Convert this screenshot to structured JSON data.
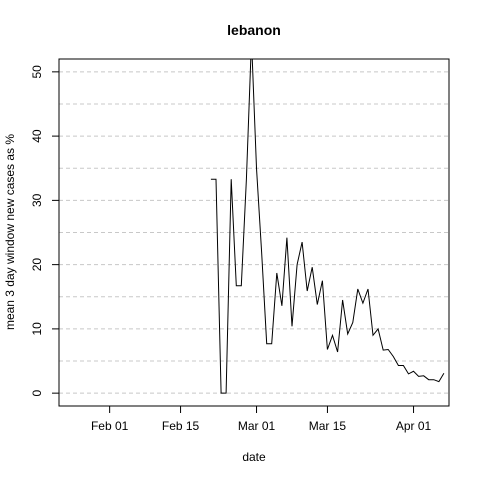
{
  "chart_data": {
    "type": "line",
    "title": "lebanon",
    "xlabel": "date",
    "ylabel": "mean  3  day window new cases as %",
    "x_date_range": [
      "2020-01-22",
      "2020-04-08"
    ],
    "ylim": [
      -2,
      52
    ],
    "x_ticks": [
      {
        "date": "2020-02-01",
        "label": "Feb 01"
      },
      {
        "date": "2020-02-15",
        "label": "Feb 15"
      },
      {
        "date": "2020-03-01",
        "label": "Mar 01"
      },
      {
        "date": "2020-03-15",
        "label": "Mar 15"
      },
      {
        "date": "2020-04-01",
        "label": "Apr 01"
      }
    ],
    "y_ticks": [
      0,
      10,
      20,
      30,
      40,
      50
    ],
    "grid": "horizontal dashed",
    "series": [
      {
        "color": "#000000",
        "x": [
          "2020-02-21",
          "2020-02-22",
          "2020-02-23",
          "2020-02-24",
          "2020-02-25",
          "2020-02-26",
          "2020-02-27",
          "2020-02-28",
          "2020-02-29",
          "2020-03-01",
          "2020-03-02",
          "2020-03-03",
          "2020-03-04",
          "2020-03-05",
          "2020-03-06",
          "2020-03-07",
          "2020-03-08",
          "2020-03-09",
          "2020-03-10",
          "2020-03-11",
          "2020-03-12",
          "2020-03-13",
          "2020-03-14",
          "2020-03-15",
          "2020-03-16",
          "2020-03-17",
          "2020-03-18",
          "2020-03-19",
          "2020-03-20",
          "2020-03-21",
          "2020-03-22",
          "2020-03-23",
          "2020-03-24",
          "2020-03-25",
          "2020-03-26",
          "2020-03-27",
          "2020-03-28",
          "2020-03-29",
          "2020-03-30",
          "2020-03-31",
          "2020-04-01",
          "2020-04-02",
          "2020-04-03",
          "2020-04-04",
          "2020-04-05",
          "2020-04-06",
          "2020-04-07"
        ],
        "y": [
          33.3,
          33.3,
          0,
          0,
          33.3,
          16.7,
          16.7,
          33.3,
          55,
          35,
          22,
          7.7,
          7.7,
          18.7,
          13.6,
          24.2,
          10.4,
          20,
          23.5,
          15.9,
          19.6,
          13.8,
          17.5,
          6.8,
          9,
          6.4,
          14.5,
          9.2,
          11,
          16.2,
          14,
          16.2,
          9,
          10,
          6.7,
          6.8,
          5.7,
          4.3,
          4.3,
          3,
          3.4,
          2.6,
          2.7,
          2.1,
          2.1,
          1.8,
          3.1
        ]
      }
    ]
  }
}
